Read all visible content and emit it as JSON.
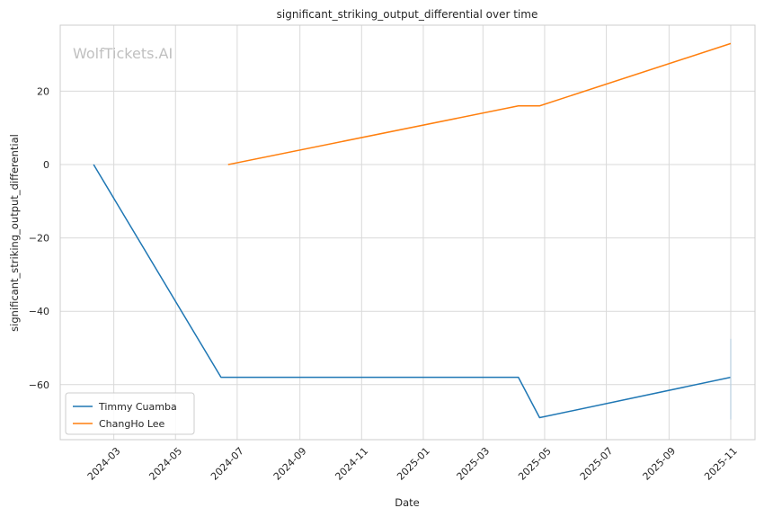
{
  "chart_data": {
    "type": "line",
    "title": "significant_striking_output_differential over time",
    "xlabel": "Date",
    "ylabel": "significant_striking_output_differential",
    "watermark": "WolfTickets.AI",
    "x_type": "date",
    "xlim": [
      "2024-01-08",
      "2025-11-25"
    ],
    "ylim": [
      -75,
      38
    ],
    "x_ticks": [
      "2024-03-01",
      "2024-05-01",
      "2024-07-01",
      "2024-09-01",
      "2024-11-01",
      "2025-01-01",
      "2025-03-01",
      "2025-05-01",
      "2025-07-01",
      "2025-09-01",
      "2025-11-01"
    ],
    "x_tick_labels": [
      "2024-03",
      "2024-05",
      "2024-07",
      "2024-09",
      "2024-11",
      "2025-01",
      "2025-03",
      "2025-05",
      "2025-07",
      "2025-09",
      "2025-11"
    ],
    "y_ticks": [
      -60,
      -40,
      -20,
      0,
      20
    ],
    "y_tick_labels": [
      "−60",
      "−40",
      "−20",
      "0",
      "20"
    ],
    "grid": true,
    "legend_position": "lower-left",
    "series": [
      {
        "name": "Timmy Cuamba",
        "color": "#1f77b4",
        "points": [
          {
            "x": "2024-02-10",
            "y": 0
          },
          {
            "x": "2024-06-15",
            "y": -58
          },
          {
            "x": "2025-04-05",
            "y": -58
          },
          {
            "x": "2025-04-26",
            "y": -69
          },
          {
            "x": "2025-11-01",
            "y": -58
          }
        ]
      },
      {
        "name": "ChangHo Lee",
        "color": "#ff7f0e",
        "points": [
          {
            "x": "2024-06-22",
            "y": 0
          },
          {
            "x": "2025-04-05",
            "y": 16
          },
          {
            "x": "2025-04-26",
            "y": 16
          },
          {
            "x": "2025-11-01",
            "y": 33
          }
        ]
      }
    ]
  }
}
